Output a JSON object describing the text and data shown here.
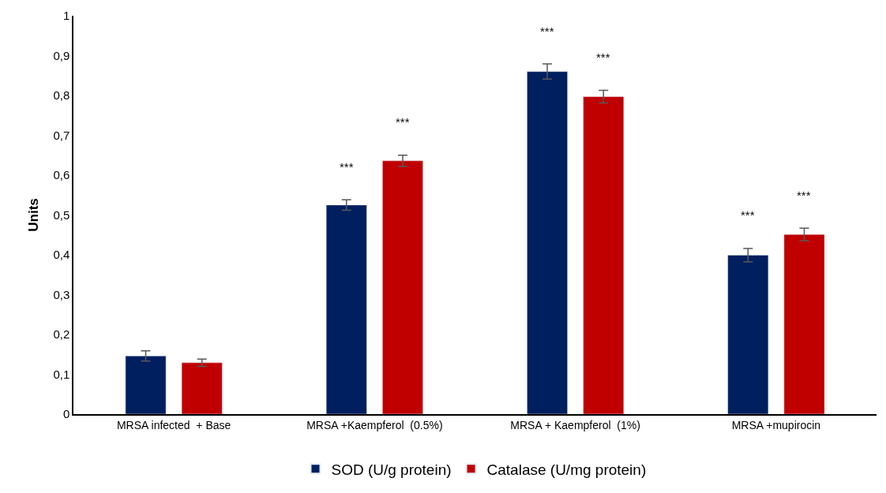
{
  "chart_data": {
    "type": "bar",
    "ylabel": "Units",
    "categories": [
      "MRSA infected  + Base",
      "MRSA +Kaempferol  (0.5%)",
      "MRSA + Kaempferol  (1%)",
      "MRSA +mupirocin"
    ],
    "series": [
      {
        "name": "SOD (U/g protein)",
        "color": "#001f5f",
        "values": [
          0.146,
          0.525,
          0.86,
          0.399
        ],
        "errors": [
          0.013,
          0.013,
          0.019,
          0.017
        ],
        "value_labels": [
          null,
          "***",
          "***",
          "***"
        ]
      },
      {
        "name": "Catalase (U/mg protein)",
        "color": "#c00000",
        "values": [
          0.129,
          0.636,
          0.797,
          0.451
        ],
        "errors": [
          0.009,
          0.014,
          0.016,
          0.016
        ],
        "value_labels": [
          null,
          "***",
          "***",
          "***"
        ]
      }
    ],
    "ylim": [
      0,
      1
    ],
    "yticks": [
      0,
      {
        "value": 0.1,
        "label": "0,1"
      },
      {
        "value": 0.2,
        "label": "0,2"
      },
      {
        "value": 0.3,
        "label": "0,3"
      },
      {
        "value": 0.4,
        "label": "0,4"
      },
      {
        "value": 0.5,
        "label": "0,5"
      },
      {
        "value": 0.6,
        "label": "0,6"
      },
      {
        "value": 0.7,
        "label": "0,7"
      },
      {
        "value": 0.8,
        "label": "0,8"
      },
      {
        "value": 0.9,
        "label": "0,9"
      },
      1
    ],
    "legend": "bottom"
  }
}
